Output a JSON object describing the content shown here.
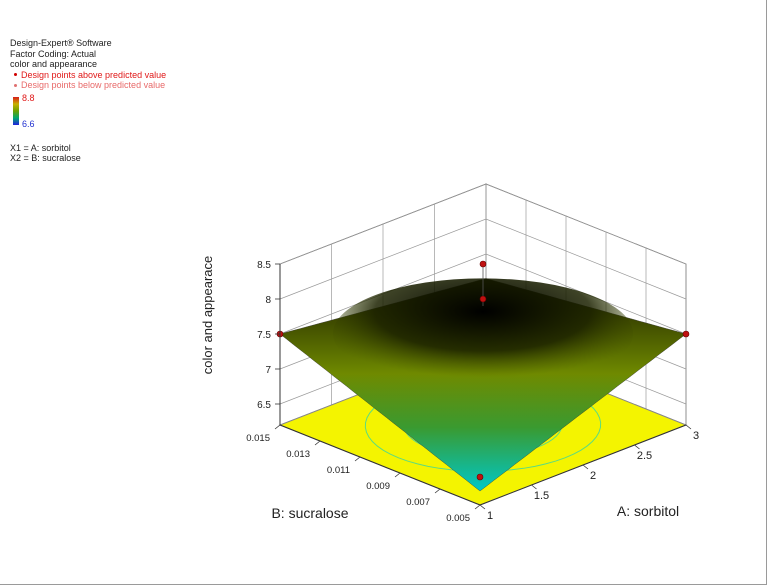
{
  "legend": {
    "software": "Design-Expert® Software",
    "coding": "Factor Coding: Actual",
    "response": "color and appearance",
    "above": "Design points above predicted value",
    "below": "Design points below predicted value",
    "scale_high": "8.8",
    "scale_low": "6.6",
    "x1": "X1 = A: sorbitol",
    "x2": "X2 = B: sucralose"
  },
  "colors": {
    "floor": "#f4f400",
    "surface_high": "#5a6a00",
    "surface_low": "#00c8c0",
    "design_point": "#c01010"
  },
  "chart_data": {
    "type": "surface3d",
    "zlabel": "color and appearace",
    "xlabel": "A: sorbitol",
    "ylabel": "B: sucralose",
    "x_ticks": [
      "1",
      "1.5",
      "2",
      "2.5",
      "3"
    ],
    "y_ticks": [
      "0.005",
      "0.007",
      "0.009",
      "0.011",
      "0.013",
      "0.015"
    ],
    "z_ticks": [
      "6.5",
      "7",
      "7.5",
      "8",
      "8.5"
    ],
    "xlim": [
      1,
      3
    ],
    "ylim": [
      0.005,
      0.015
    ],
    "zlim": [
      6.2,
      8.5
    ],
    "surface": {
      "center": 8.0,
      "corner_A3_B0.005": 7.5,
      "corner_A1_B0.015": 7.5,
      "corner_A3_B0.015": 7.15,
      "corner_A1_B0.005": 6.4
    },
    "design_points": [
      {
        "x": 2,
        "y": 0.01,
        "z": 8.0
      },
      {
        "x": 2,
        "y": 0.01,
        "z": 8.5
      },
      {
        "x": 3,
        "y": 0.005,
        "z": 7.5
      },
      {
        "x": 1,
        "y": 0.015,
        "z": 7.5
      },
      {
        "x": 1,
        "y": 0.005,
        "z": 6.6
      }
    ],
    "grid": true
  }
}
